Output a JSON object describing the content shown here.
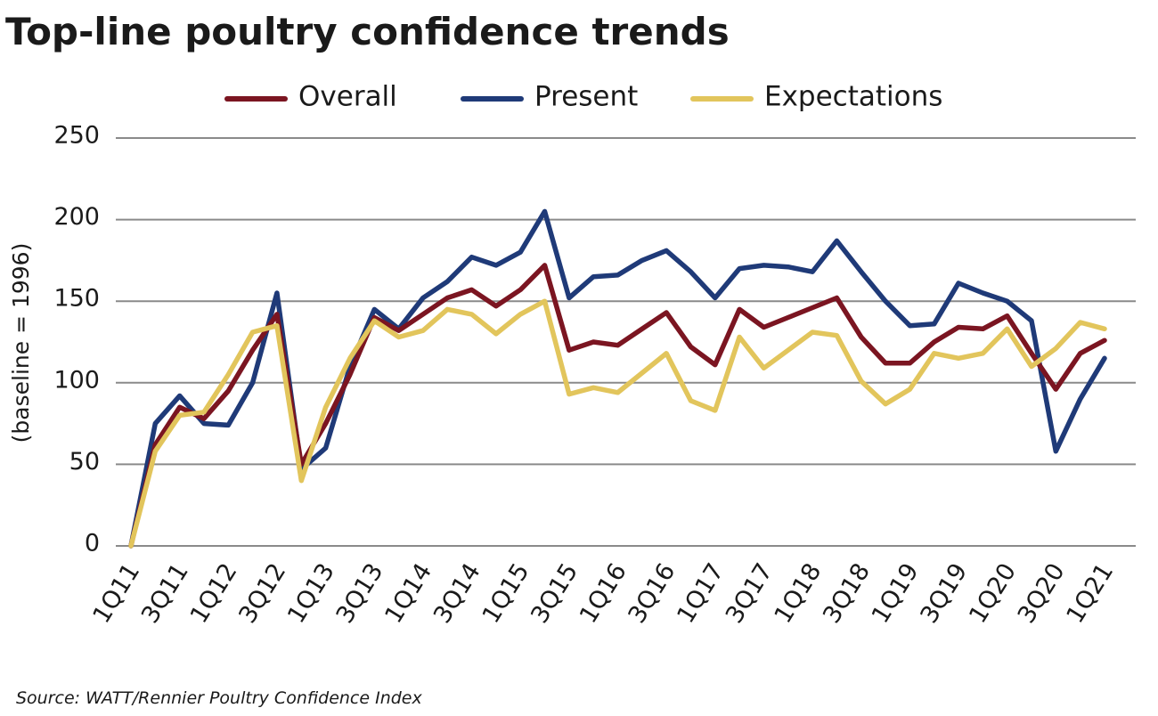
{
  "chart_data": {
    "type": "line",
    "title": "Top-line poultry confidence trends",
    "y_label": "(baseline = 1996)",
    "source": "Source:  WATT/Rennier Poultry Confidence Index",
    "categories": [
      "1Q11",
      null,
      "3Q11",
      null,
      "1Q12",
      null,
      "3Q12",
      null,
      "1Q13",
      null,
      "3Q13",
      null,
      "1Q14",
      null,
      "3Q14",
      null,
      "1Q15",
      null,
      "3Q15",
      null,
      "1Q16",
      null,
      "3Q16",
      null,
      "1Q17",
      null,
      "3Q17",
      null,
      "1Q18",
      null,
      "3Q18",
      null,
      "1Q19",
      null,
      "3Q19",
      null,
      "1Q20",
      null,
      "3Q20",
      null,
      "1Q21"
    ],
    "series": [
      {
        "name": "Overall",
        "color": "#7b1521",
        "values": [
          0,
          62,
          85,
          78,
          95,
          120,
          142,
          50,
          75,
          105,
          140,
          132,
          142,
          152,
          157,
          147,
          157,
          172,
          120,
          125,
          123,
          133,
          143,
          122,
          111,
          145,
          134,
          140,
          146,
          152,
          128,
          112,
          112,
          125,
          134,
          133,
          141,
          118,
          96,
          118,
          126
        ]
      },
      {
        "name": "Present",
        "color": "#1f3a78",
        "values": [
          0,
          75,
          92,
          75,
          74,
          100,
          155,
          47,
          60,
          110,
          145,
          133,
          152,
          162,
          177,
          172,
          180,
          205,
          152,
          165,
          166,
          175,
          181,
          168,
          152,
          170,
          172,
          171,
          168,
          187,
          168,
          150,
          135,
          136,
          161,
          155,
          150,
          138,
          58,
          90,
          115
        ]
      },
      {
        "name": "Expectations",
        "color": "#e2c55c",
        "values": [
          0,
          58,
          80,
          82,
          105,
          131,
          135,
          40,
          85,
          115,
          138,
          128,
          132,
          145,
          142,
          130,
          142,
          150,
          93,
          97,
          94,
          106,
          118,
          89,
          83,
          128,
          109,
          120,
          131,
          129,
          101,
          87,
          96,
          118,
          115,
          118,
          133,
          110,
          121,
          137,
          133
        ]
      }
    ],
    "ylim": [
      0,
      250
    ],
    "yticks": [
      0,
      50,
      100,
      150,
      200,
      250
    ],
    "grid": true,
    "legend": "top"
  }
}
